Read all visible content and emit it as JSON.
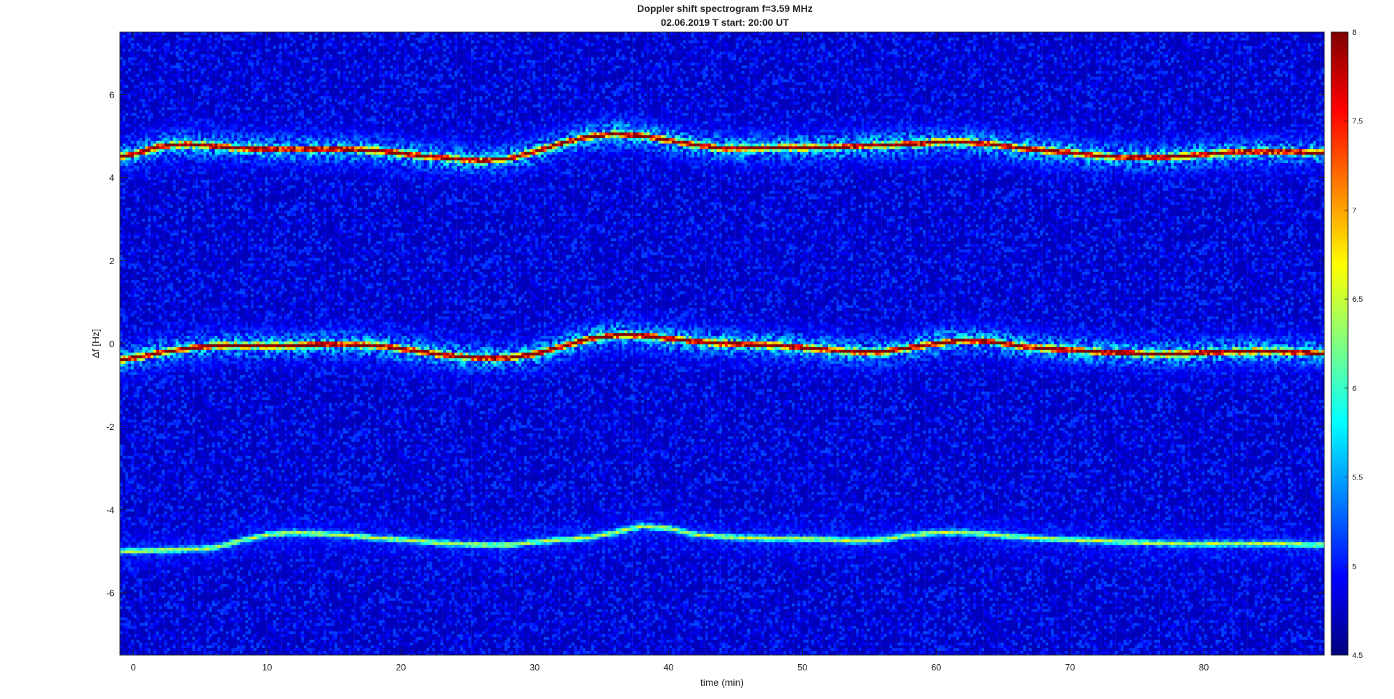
{
  "chart_data": {
    "type": "heatmap",
    "title": "Doppler shift spectrogram f=3.59 MHz",
    "subtitle": "02.06.2019   T start: 20:00 UT",
    "xlabel": "time (min)",
    "ylabel": "Δf [Hz]",
    "xlim": [
      -1,
      89
    ],
    "ylim": [
      -7.5,
      7.5
    ],
    "x_ticks": [
      0,
      10,
      20,
      30,
      40,
      50,
      60,
      70,
      80
    ],
    "y_ticks": [
      -6,
      -4,
      -2,
      0,
      2,
      4,
      6
    ],
    "colormap": "jet",
    "clim": [
      4.5,
      8
    ],
    "colorbar_ticks": [
      4.5,
      5,
      5.5,
      6,
      6.5,
      7,
      7.5,
      8
    ],
    "background_level": 4.7,
    "series": [
      {
        "x": [
          -1,
          0,
          2,
          4,
          6,
          8,
          10,
          12,
          14,
          16,
          18,
          20,
          22,
          24,
          26,
          28,
          30,
          32,
          34,
          36,
          38,
          40,
          42,
          44,
          46,
          48,
          50,
          52,
          54,
          56,
          58,
          60,
          62,
          64,
          66,
          68,
          70,
          72,
          74,
          76,
          78,
          80,
          82,
          84,
          86,
          88,
          89
        ],
        "y": [
          4.5,
          4.55,
          4.75,
          4.8,
          4.75,
          4.7,
          4.68,
          4.68,
          4.68,
          4.68,
          4.65,
          4.58,
          4.5,
          4.45,
          4.4,
          4.45,
          4.62,
          4.82,
          4.98,
          5.05,
          5.0,
          4.9,
          4.78,
          4.7,
          4.7,
          4.72,
          4.72,
          4.72,
          4.75,
          4.78,
          4.8,
          4.85,
          4.85,
          4.8,
          4.72,
          4.65,
          4.6,
          4.52,
          4.48,
          4.48,
          4.5,
          4.55,
          4.6,
          4.62,
          4.62,
          4.6,
          4.6
        ],
        "peak_level": 7.7
      },
      {
        "x": [
          -1,
          0,
          2,
          4,
          6,
          8,
          10,
          12,
          14,
          16,
          18,
          20,
          22,
          24,
          26,
          28,
          30,
          32,
          34,
          36,
          38,
          40,
          42,
          44,
          46,
          48,
          50,
          52,
          54,
          56,
          58,
          60,
          62,
          64,
          66,
          68,
          70,
          72,
          74,
          76,
          78,
          80,
          82,
          84,
          86,
          88,
          89
        ],
        "y": [
          -0.4,
          -0.35,
          -0.22,
          -0.12,
          -0.05,
          -0.05,
          -0.05,
          -0.05,
          -0.02,
          -0.02,
          -0.05,
          -0.12,
          -0.22,
          -0.3,
          -0.35,
          -0.35,
          -0.25,
          -0.08,
          0.12,
          0.2,
          0.2,
          0.12,
          0.05,
          0.0,
          -0.02,
          -0.05,
          -0.1,
          -0.15,
          -0.2,
          -0.2,
          -0.1,
          0.0,
          0.08,
          0.05,
          -0.05,
          -0.12,
          -0.15,
          -0.2,
          -0.22,
          -0.25,
          -0.25,
          -0.22,
          -0.2,
          -0.18,
          -0.2,
          -0.22,
          -0.25
        ],
        "peak_level": 7.8
      },
      {
        "x": [
          -1,
          0,
          2,
          4,
          6,
          8,
          10,
          12,
          14,
          16,
          18,
          20,
          22,
          24,
          26,
          28,
          30,
          32,
          34,
          36,
          38,
          40,
          42,
          44,
          46,
          48,
          50,
          52,
          54,
          56,
          58,
          60,
          62,
          64,
          66,
          68,
          70,
          72,
          74,
          76,
          78,
          80,
          82,
          84,
          86,
          88,
          89
        ],
        "y": [
          -5.0,
          -5.0,
          -4.98,
          -4.96,
          -4.92,
          -4.75,
          -4.6,
          -4.55,
          -4.58,
          -4.62,
          -4.68,
          -4.72,
          -4.78,
          -4.82,
          -4.85,
          -4.85,
          -4.78,
          -4.72,
          -4.68,
          -4.55,
          -4.4,
          -4.45,
          -4.6,
          -4.65,
          -4.68,
          -4.7,
          -4.7,
          -4.72,
          -4.75,
          -4.72,
          -4.62,
          -4.55,
          -4.55,
          -4.6,
          -4.65,
          -4.7,
          -4.72,
          -4.75,
          -4.78,
          -4.8,
          -4.82,
          -4.82,
          -4.82,
          -4.82,
          -4.82,
          -4.85,
          -4.85
        ],
        "peak_level": 6.2
      }
    ]
  }
}
